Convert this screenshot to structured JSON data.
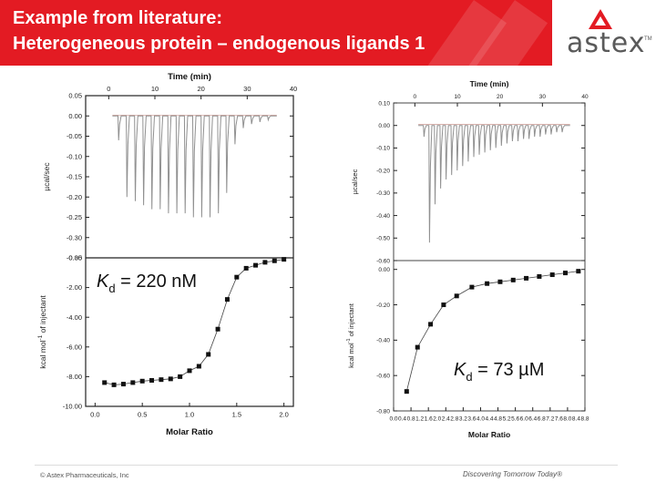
{
  "slide": {
    "title_line1": "Example from literature:",
    "title_line2": "Heterogeneous protein – endogenous ligands 1",
    "logo": "astex",
    "logo_tm": "TM",
    "footer_left": "© Astex Pharmaceuticals, Inc",
    "footer_right": "Discovering Tomorrow Today®"
  },
  "colors": {
    "header": "#e31b23",
    "raw_trace": "#909090",
    "points": "#111111",
    "fit": "#444444"
  },
  "chart_data": [
    {
      "type": "line",
      "panel": "left-top",
      "title": "Time (min)",
      "ylabel": "µcal/sec",
      "xlim": [
        -5,
        40
      ],
      "ylim": [
        -0.35,
        0.05
      ],
      "xticks": [
        "0",
        "10",
        "20",
        "30",
        "40"
      ],
      "yticks": [
        "0.05",
        "0.00",
        "-0.05",
        "-0.10",
        "-0.15",
        "-0.20",
        "-0.25",
        "-0.30",
        "-0.35"
      ],
      "injection_times_min": [
        2,
        3.8,
        5.6,
        7.4,
        9.2,
        11,
        12.8,
        14.6,
        16.4,
        18.2,
        20,
        21.8,
        23.6,
        25.4,
        27.2,
        29,
        30.8,
        32.6,
        34.4
      ],
      "peak_values": [
        -0.06,
        -0.2,
        -0.21,
        -0.22,
        -0.23,
        -0.23,
        -0.24,
        -0.24,
        -0.24,
        -0.25,
        -0.25,
        -0.25,
        -0.24,
        -0.19,
        -0.07,
        -0.03,
        -0.02,
        -0.015,
        -0.01
      ],
      "baseline": 0.0
    },
    {
      "type": "scatter",
      "panel": "left-bottom",
      "annotation_k": "K",
      "annotation_sub": "d",
      "annotation_value": " = 220 nM",
      "xlabel": "Molar Ratio",
      "ylabel": "kcal mol",
      "ylabel_sup": "-1",
      "ylabel_rest": " of injectant",
      "xlim": [
        -0.1,
        2.1
      ],
      "ylim": [
        -10,
        0
      ],
      "xticks": [
        "0.0",
        "0.5",
        "1.0",
        "1.5",
        "2.0"
      ],
      "yticks": [
        "0.00",
        "-2.00",
        "-4.00",
        "-6.00",
        "-8.00",
        "-10.00"
      ],
      "x": [
        0.1,
        0.2,
        0.3,
        0.4,
        0.5,
        0.6,
        0.7,
        0.8,
        0.9,
        1.0,
        1.1,
        1.2,
        1.3,
        1.4,
        1.5,
        1.6,
        1.7,
        1.8,
        1.9,
        2.0
      ],
      "y": [
        -8.4,
        -8.55,
        -8.5,
        -8.4,
        -8.3,
        -8.25,
        -8.2,
        -8.15,
        -8.0,
        -7.6,
        -7.3,
        -6.5,
        -4.8,
        -2.8,
        -1.3,
        -0.7,
        -0.5,
        -0.3,
        -0.2,
        -0.1
      ]
    },
    {
      "type": "line",
      "panel": "right-top",
      "title": "Time (min)",
      "ylabel": "µcal/sec",
      "xlim": [
        -5,
        40
      ],
      "ylim": [
        -0.6,
        0.1
      ],
      "xticks": [
        "0",
        "10",
        "20",
        "30",
        "40"
      ],
      "yticks": [
        "0.10",
        "0.00",
        "-0.10",
        "-0.20",
        "-0.30",
        "-0.40",
        "-0.50",
        "-0.60"
      ],
      "injection_times_min": [
        2,
        3.3,
        4.6,
        5.9,
        7.2,
        8.5,
        9.8,
        11.1,
        12.4,
        13.7,
        15,
        16.3,
        17.6,
        18.9,
        20.2,
        21.5,
        22.8,
        24.1,
        25.4,
        26.7,
        28,
        29.3,
        30.6,
        31.9,
        33.2,
        34.5
      ],
      "peak_values": [
        -0.05,
        -0.52,
        -0.35,
        -0.28,
        -0.24,
        -0.22,
        -0.2,
        -0.18,
        -0.16,
        -0.14,
        -0.13,
        -0.12,
        -0.11,
        -0.1,
        -0.09,
        -0.08,
        -0.07,
        -0.07,
        -0.06,
        -0.06,
        -0.05,
        -0.05,
        -0.04,
        -0.04,
        -0.03,
        -0.03
      ],
      "baseline": 0.0
    },
    {
      "type": "scatter",
      "panel": "right-bottom",
      "annotation_k": "K",
      "annotation_sub": "d",
      "annotation_value": " = 73 µM",
      "xlabel": "Molar Ratio",
      "ylabel": "kcal mol",
      "ylabel_sup": "-1",
      "ylabel_rest": " of injectant",
      "xlim": [
        0,
        8.8
      ],
      "ylim": [
        -0.8,
        0.05
      ],
      "xticks": [
        "0.0",
        "0.8",
        "1.6",
        "2.4",
        "3.2",
        "4.0",
        "4.8",
        "5.6",
        "6.4",
        "7.2",
        "8.0",
        "8.8"
      ],
      "xticks_minor": [
        "0.4",
        "1.2",
        "2.0",
        "2.8",
        "3.6",
        "4.4",
        "5.2",
        "6.0",
        "6.8",
        "7.6",
        "8.4"
      ],
      "yticks": [
        "0.00",
        "-0.20",
        "-0.40",
        "-0.60",
        "-0.80"
      ],
      "x": [
        0.6,
        1.1,
        1.7,
        2.3,
        2.9,
        3.6,
        4.3,
        4.9,
        5.5,
        6.1,
        6.7,
        7.3,
        7.9,
        8.5
      ],
      "y": [
        -0.69,
        -0.44,
        -0.31,
        -0.2,
        -0.15,
        -0.1,
        -0.08,
        -0.07,
        -0.06,
        -0.05,
        -0.04,
        -0.03,
        -0.02,
        -0.01
      ]
    }
  ]
}
